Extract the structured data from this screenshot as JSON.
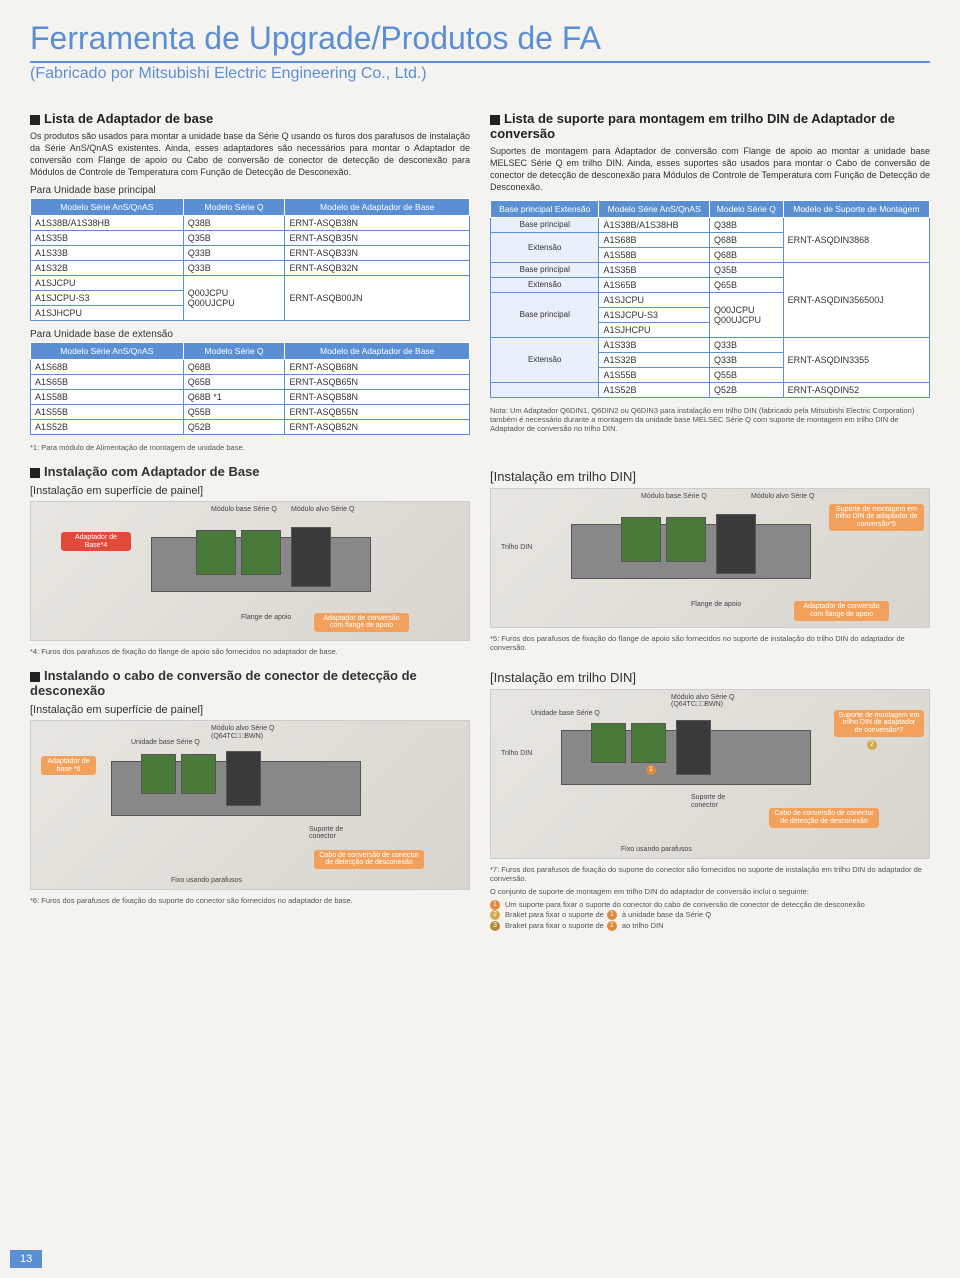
{
  "header": {
    "title": "Ferramenta de Upgrade/Produtos de FA",
    "subtitle": "(Fabricado por Mitsubishi Electric Engineering Co., Ltd.)"
  },
  "left": {
    "h1": "Lista de Adaptador de base",
    "p1": "Os produtos são usados para montar a unidade base da Série Q usando os furos dos parafusos de instalação da Série AnS/QnAS existentes. Ainda, esses adaptadores são necessários para montar o Adaptador de conversão com Flange de apoio ou Cabo de conversão de conector de detecção de desconexão para Módulos de Controle de Temperatura com Função de Detecção de Desconexão.",
    "t1_sub": "Para Unidade base principal",
    "t1": {
      "cols": [
        "Modelo Série AnS/QnAS",
        "Modelo Série Q",
        "Modelo de Adaptador de Base"
      ],
      "rows": [
        [
          "A1S38B/A1S38HB",
          "Q38B",
          "ERNT-ASQB38N"
        ],
        [
          "A1S35B",
          "Q35B",
          "ERNT-ASQB35N"
        ],
        [
          "A1S33B",
          "Q33B",
          "ERNT-ASQB33N"
        ],
        [
          "A1S32B",
          "Q33B",
          "ERNT-ASQB32N"
        ]
      ],
      "merged": {
        "left": [
          "A1SJCPU",
          "A1SJCPU-S3",
          "A1SJHCPU"
        ],
        "mid": [
          "Q00JCPU",
          "Q00UJCPU"
        ],
        "right": "ERNT-ASQB00JN"
      }
    },
    "t2_sub": "Para Unidade base de extensão",
    "t2": {
      "cols": [
        "Modelo Série AnS/QnAS",
        "Modelo Série Q",
        "Modelo de Adaptador de Base"
      ],
      "rows": [
        [
          "A1S68B",
          "Q68B",
          "ERNT-ASQB68N"
        ],
        [
          "A1S65B",
          "Q65B",
          "ERNT-ASQB65N"
        ],
        [
          "A1S58B",
          "Q68B *1",
          "ERNT-ASQB58N"
        ],
        [
          "A1S55B",
          "Q55B",
          "ERNT-ASQB55N"
        ],
        [
          "A1S52B",
          "Q52B",
          "ERNT-ASQB52N"
        ]
      ],
      "note": "*1: Para módulo de Alimentação de montagem de unidade base."
    },
    "install1_h": "Instalação com Adaptador de Base",
    "install1_sub": "[Instalação em superfície de painel]",
    "d1": {
      "l_modalvo": "Módulo alvo Série Q",
      "l_modbase": "Módulo base Série Q",
      "c_adapt": "Adaptador de Base*4",
      "l_flange": "Flange de apoio",
      "c_conv": "Adaptador de conversão com flange de apoio",
      "note4": "*4: Furos dos parafusos de fixação do flange de apoio são fornecidos no adaptador de base."
    },
    "install2_h": "Instalando o cabo de conversão de conector de detecção de desconexão",
    "install2_sub": "[Instalação em superfície de painel]",
    "d2": {
      "l_modalvo": "Módulo alvo Série Q (Q64TC□□BWN)",
      "l_unidade": "Unidade base Série Q",
      "c_adapt": "Adaptador de base *6",
      "l_suporte": "Suporte de conector",
      "c_cabo": "Cabo de conversão de conector de detecção de desconexão",
      "note6": "*6: Furos dos parafusos de fixação do suporte do conector são fornecidos no adaptador de base.",
      "l_fixo": "Fixo usando parafusos"
    }
  },
  "right": {
    "h1": "Lista de suporte para montagem em trilho DIN de Adaptador de conversão",
    "p1": "Suportes de montagem para Adaptador de conversão com Flange de apoio ao montar a unidade base MELSEC Série Q em trilho DIN. Ainda, esses suportes são usados para montar o Cabo de conversão de conector de detecção de desconexão para Módulos de Controle de Temperatura com Função de Detecção de Desconexão.",
    "t3": {
      "cols": [
        "Base principal Extensão",
        "Modelo Série AnS/QnAS",
        "Modelo Série Q",
        "Modelo de Suporte de Montagem"
      ],
      "groups": [
        {
          "cat": "Base principal",
          "left": "A1S38B/A1S38HB",
          "mid": "Q38B",
          "right": "ERNT-ASQDIN3868",
          "rs": 3
        },
        {
          "cat": "Extensão",
          "left": "A1S68B",
          "mid": "Q68B"
        },
        {
          "cat": "",
          "left": "A1S58B",
          "mid": "Q68B"
        },
        {
          "cat": "Base principal",
          "left": "A1S35B",
          "mid": "Q35B",
          "right": "ERNT-ASQDIN356500J",
          "rs": 6
        },
        {
          "cat": "Extensão",
          "left": "A1S65B",
          "mid": "Q65B"
        },
        {
          "cat": "Base principal",
          "left": "A1SJCPU",
          "mid": "Q00JCPU",
          "mr": 3
        },
        {
          "cat": "",
          "left": "A1SJCPU-S3",
          "mid": "Q00UJCPU"
        },
        {
          "cat": "",
          "left": "A1SJHCPU",
          "mid": ""
        },
        {
          "sep": true
        },
        {
          "cat": "",
          "left": "A1S33B",
          "mid": "Q33B",
          "right": "ERNT-ASQDIN3355",
          "rs": 3
        },
        {
          "cat": "Extensão",
          "left": "A1S32B",
          "mid": "Q33B"
        },
        {
          "cat": "",
          "left": "A1S55B",
          "mid": "Q55B"
        },
        {
          "cat": "",
          "left": "A1S52B",
          "mid": "Q52B",
          "right": "ERNT-ASQDIN52",
          "rs": 1
        }
      ],
      "note": "Nota: Um Adaptador Q6DIN1, Q6DIN2 ou Q6DIN3 para instalação em trilho DIN (fabricado pela Mitsubishi Electric Corporation) também é necessário durante a montagem da unidade base MELSEC Série Q com suporte de montagem em trilho DIN de Adaptador de conversão no trilho DIN."
    },
    "install1_sub": "[Instalação em trilho DIN]",
    "d1": {
      "l_modalvo": "Módulo alvo Série Q",
      "l_modbase": "Módulo base Série Q",
      "l_trilho": "Trilho DIN",
      "l_flange": "Flange de apoio",
      "c_sup": "Suporte de montagem em trilho DIN de adaptador de conversão*5",
      "c_conv": "Adaptador de conversão com flange de apoio",
      "note5": "*5: Furos dos parafusos de fixação do flange de apoio são fornecidos no suporte de instalação do trilho DIN do adaptador de conversão."
    },
    "install2_sub": "[Instalação em trilho DIN]",
    "d2": {
      "l_modalvo": "Módulo alvo Série Q (Q64TC□□BWN)",
      "l_unidade": "Unidade base Série Q",
      "l_trilho": "Trilho DIN",
      "l_suporte": "Suporte de conector",
      "c_cabo": "Cabo de conversão de conector de detecção de desconexão",
      "c_sup": "Suporte de montagem em trilho DIN de adaptador de conversão*7",
      "note7": "*7: Furos dos parafusos de fixação do suporte do conector são fornecidos no suporte de instalação em trilho DIN do adaptador de conversão.",
      "l_fixo": "Fixo usando parafusos",
      "foot_h": "O conjunto de suporte de montagem em trilho DIN do adaptador de conversão inclui o seguinte:",
      "foot1": "Um suporte para fixar o suporte do conector do cabo de conversão de conector de detecção de desconexão",
      "foot2a": "Braket para fixar o suporte de",
      "foot2b": "à unidade base da Série Q",
      "foot3a": "Braket para fixar o suporte de",
      "foot3b": "ao trilho DIN"
    }
  },
  "page_num": "13"
}
